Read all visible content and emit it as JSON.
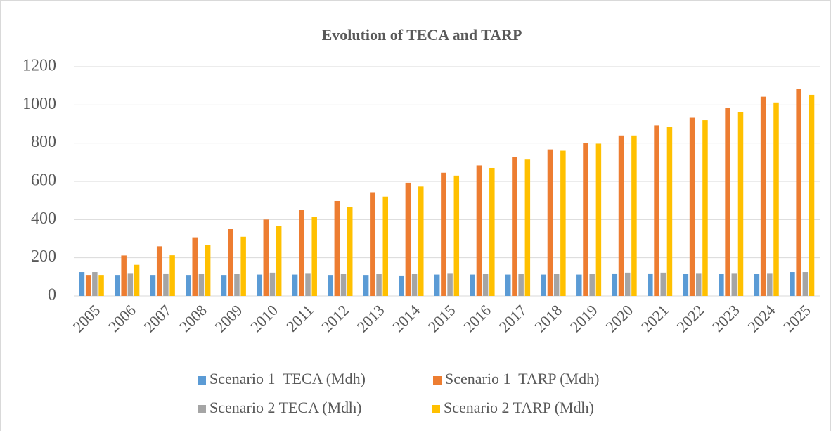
{
  "chart_data": {
    "type": "bar",
    "title": "Evolution of TECA and TARP",
    "categories": [
      "2005",
      "2006",
      "2007",
      "2008",
      "2009",
      "2010",
      "2011",
      "2012",
      "2013",
      "2014",
      "2015",
      "2016",
      "2017",
      "2018",
      "2019",
      "2020",
      "2021",
      "2022",
      "2023",
      "2024",
      "2025"
    ],
    "series": [
      {
        "name": "Scenario 1  TECA (Mdh)",
        "color": "#5b9bd5",
        "values": [
          125,
          110,
          110,
          110,
          110,
          112,
          112,
          110,
          110,
          107,
          112,
          112,
          112,
          112,
          112,
          118,
          118,
          115,
          115,
          115,
          125
        ]
      },
      {
        "name": "Scenario 1  TARP (Mdh)",
        "color": "#ed7d31",
        "values": [
          110,
          212,
          260,
          307,
          350,
          400,
          450,
          497,
          543,
          593,
          645,
          683,
          727,
          767,
          800,
          840,
          893,
          933,
          985,
          1043,
          1085
        ]
      },
      {
        "name": "Scenario 2 TECA (Mdh)",
        "color": "#a5a5a5",
        "values": [
          125,
          120,
          118,
          117,
          117,
          122,
          120,
          117,
          115,
          115,
          120,
          117,
          117,
          117,
          117,
          122,
          122,
          120,
          120,
          120,
          125
        ]
      },
      {
        "name": "Scenario 2 TARP (Mdh)",
        "color": "#ffc000",
        "values": [
          110,
          163,
          213,
          265,
          310,
          365,
          415,
          467,
          520,
          573,
          630,
          670,
          717,
          760,
          797,
          840,
          887,
          920,
          963,
          1013,
          1053
        ]
      }
    ],
    "ylim": [
      0,
      1200
    ],
    "yticks": [
      0,
      200,
      400,
      600,
      800,
      1000,
      1200
    ],
    "grid": true
  }
}
